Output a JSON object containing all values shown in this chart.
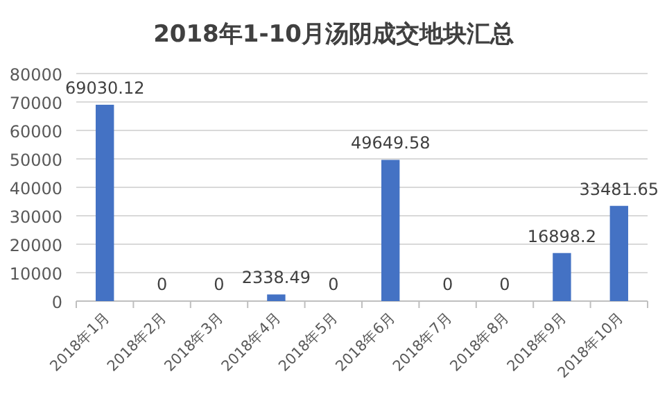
{
  "chart_data": {
    "type": "bar",
    "title": "2018年1-10月汤阴成交地块汇总",
    "categories": [
      "2018年1月",
      "2018年2月",
      "2018年3月",
      "2018年4月",
      "2018年5月",
      "2018年6月",
      "2018年7月",
      "2018年8月",
      "2018年9月",
      "2018年10月"
    ],
    "values": [
      69030.12,
      0,
      0,
      2338.49,
      0,
      49649.58,
      0,
      0,
      16898.2,
      33481.65
    ],
    "color": "#4472c4",
    "ylim": [
      0,
      80000
    ],
    "yticks": [
      0,
      10000,
      20000,
      30000,
      40000,
      50000,
      60000,
      70000,
      80000
    ],
    "grid": "y",
    "data_labels": true
  }
}
